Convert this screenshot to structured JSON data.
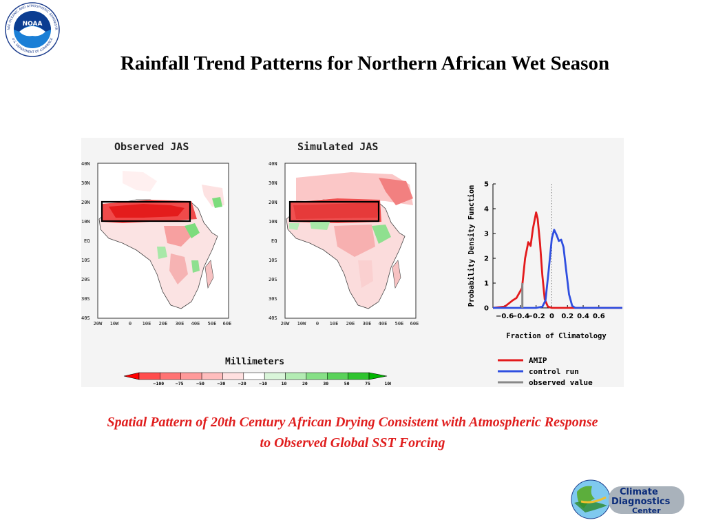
{
  "title": "Rainfall Trend Patterns for Northern African Wet Season",
  "caption": {
    "line1": "Spatial Pattern of 20th Century African Drying Consistent with Atmospheric Response",
    "line2": "to Observed Global SST Forcing"
  },
  "logos": {
    "noaa": {
      "center_text": "NOAA",
      "ring_top": "NATIONAL OCEANIC AND ATMOSPHERIC ADMINISTRATION",
      "ring_bottom": "U.S. DEPARTMENT OF COMMERCE"
    },
    "cdc": {
      "line1": "Climate",
      "line2": "Diagnostics",
      "line3": "Center"
    }
  },
  "colors": {
    "red_line": "#e31a1c",
    "blue_line": "#2f4fe0",
    "gray_line": "#888888",
    "caption": "#e01e1e"
  },
  "maps": [
    {
      "title": "Observed JAS",
      "lat_ticks": [
        "40N",
        "30N",
        "20N",
        "10N",
        "EQ",
        "10S",
        "20S",
        "30S",
        "40S"
      ],
      "lon_ticks": [
        "20W",
        "10W",
        "0",
        "10E",
        "20E",
        "30E",
        "40E",
        "50E",
        "60E"
      ]
    },
    {
      "title": "Simulated JAS",
      "lat_ticks": [
        "40N",
        "30N",
        "20N",
        "10N",
        "EQ",
        "10S",
        "20S",
        "30S",
        "40S"
      ],
      "lon_ticks": [
        "20W",
        "10W",
        "0",
        "10E",
        "20E",
        "30E",
        "40E",
        "50E",
        "60E"
      ]
    }
  ],
  "colorbar": {
    "title": "Millimeters",
    "labels": [
      "−100",
      "−75",
      "−50",
      "−30",
      "−20",
      "−10",
      "10",
      "20",
      "30",
      "50",
      "75",
      "100"
    ],
    "colors": [
      "#ff0000",
      "#ff4d4d",
      "#ff7373",
      "#ff9a9a",
      "#ffbdbd",
      "#ffe0e0",
      "#ffffff",
      "#d9f5d9",
      "#b3ecb3",
      "#86e086",
      "#5ad25a",
      "#2fc42f",
      "#00b400"
    ]
  },
  "chart_data": {
    "type": "line",
    "ylabel": "Probability Density Function",
    "xlabel": "Fraction of Climatology",
    "xlim": [
      -0.75,
      0.9
    ],
    "ylim": [
      0,
      5
    ],
    "x_ticks": [
      -0.6,
      -0.4,
      -0.2,
      0,
      0.2,
      0.4,
      0.6
    ],
    "x_tick_labels": [
      "−0.6",
      "−0.4",
      "−0.2",
      "0",
      "0.2",
      "0.4",
      "0.6"
    ],
    "y_ticks": [
      0,
      1,
      2,
      3,
      4,
      5
    ],
    "y_tick_labels": [
      "0",
      "1",
      "2",
      "3",
      "4",
      "5"
    ],
    "reference_line_x": 0,
    "series": [
      {
        "name": "AMIP",
        "color": "#e31a1c",
        "x": [
          -0.75,
          -0.6,
          -0.5,
          -0.45,
          -0.38,
          -0.34,
          -0.3,
          -0.27,
          -0.24,
          -0.2,
          -0.18,
          -0.15,
          -0.12,
          -0.09,
          -0.05,
          0,
          0.05,
          0.9
        ],
        "y": [
          0,
          0.05,
          0.3,
          0.4,
          0.8,
          2.0,
          2.65,
          2.5,
          3.2,
          3.85,
          3.6,
          2.6,
          1.3,
          0.35,
          0.05,
          0,
          0,
          0
        ]
      },
      {
        "name": "control run",
        "color": "#2f4fe0",
        "x": [
          -0.75,
          -0.2,
          -0.12,
          -0.08,
          -0.04,
          0,
          0.03,
          0.06,
          0.09,
          0.12,
          0.15,
          0.18,
          0.22,
          0.26,
          0.3,
          0.9
        ],
        "y": [
          0,
          0,
          0.05,
          0.3,
          1.5,
          2.8,
          3.15,
          2.95,
          2.7,
          2.75,
          2.45,
          1.6,
          0.55,
          0.08,
          0,
          0
        ]
      },
      {
        "name": "observed value",
        "color": "#888888",
        "x": [
          -0.375,
          -0.375
        ],
        "y": [
          0,
          1.0
        ]
      }
    ]
  }
}
